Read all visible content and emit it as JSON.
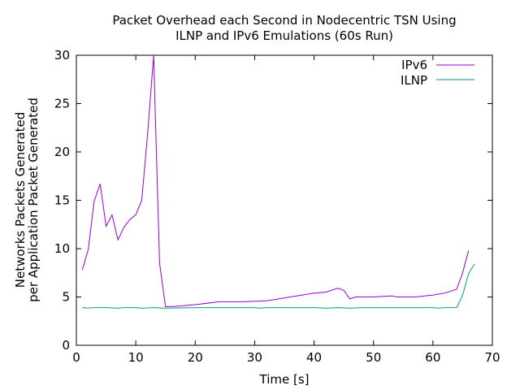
{
  "chart_data": {
    "type": "line",
    "title_line1": "Packet Overhead each Second in Nodecentric TSN Using",
    "title_line2": "ILNP and IPv6 Emulations (60s Run)",
    "xlabel": "Time [s]",
    "ylabel_line1": "Networks Packets Generated",
    "ylabel_line2": "per Application Packet Generated",
    "xlim": [
      0,
      70
    ],
    "ylim": [
      0,
      30
    ],
    "xticks": [
      0,
      10,
      20,
      30,
      40,
      50,
      60,
      70
    ],
    "yticks": [
      0,
      5,
      10,
      15,
      20,
      25,
      30
    ],
    "legend_position": "top-right",
    "grid": false,
    "series": [
      {
        "name": "IPv6",
        "color": "#9400d3",
        "x": [
          1,
          2,
          3,
          4,
          5,
          6,
          7,
          8,
          9,
          10,
          11,
          12,
          13,
          14,
          15,
          16,
          20,
          24,
          28,
          32,
          36,
          40,
          42,
          44,
          45,
          46,
          47,
          50,
          53,
          54,
          57,
          60,
          62,
          64,
          65,
          66
        ],
        "y": [
          7.8,
          9.9,
          14.9,
          16.7,
          12.3,
          13.5,
          10.9,
          12.2,
          13.0,
          13.5,
          15.0,
          22.0,
          30.0,
          8.5,
          4.0,
          4.0,
          4.2,
          4.5,
          4.5,
          4.6,
          5.0,
          5.4,
          5.5,
          5.9,
          5.7,
          4.8,
          5.0,
          5.0,
          5.1,
          5.0,
          5.0,
          5.2,
          5.4,
          5.8,
          7.5,
          9.8
        ]
      },
      {
        "name": "ILNP",
        "color": "#009e73",
        "x": [
          1,
          2,
          3,
          5,
          7,
          8,
          10,
          11,
          13,
          15,
          20,
          25,
          30,
          31,
          32,
          36,
          40,
          42,
          44,
          46,
          48,
          50,
          52,
          56,
          60,
          61,
          62,
          63,
          64,
          65,
          66,
          67
        ],
        "y": [
          3.9,
          3.85,
          3.9,
          3.9,
          3.85,
          3.9,
          3.9,
          3.85,
          3.9,
          3.85,
          3.9,
          3.9,
          3.9,
          3.85,
          3.9,
          3.9,
          3.9,
          3.85,
          3.9,
          3.85,
          3.9,
          3.9,
          3.9,
          3.9,
          3.9,
          3.85,
          3.9,
          3.9,
          3.9,
          5.2,
          7.4,
          8.4
        ]
      }
    ]
  }
}
